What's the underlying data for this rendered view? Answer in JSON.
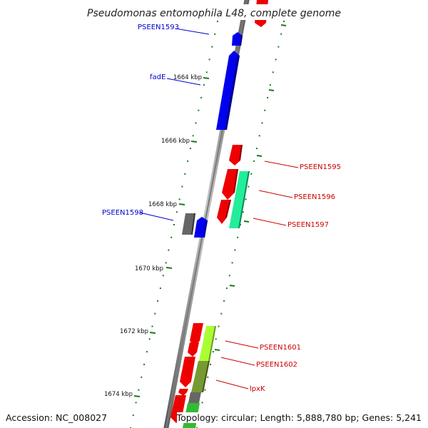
{
  "title": "Pseudomonas entomophila L48, complete genome",
  "footer": {
    "accession": "Accession: NC_008027",
    "topology": "Topology: circular; Length: 5,888,780 bp; Genes: 5,241"
  },
  "colors": {
    "backbone": "#808080",
    "tick": "#1a7a1a",
    "forward_label": "#0000cc",
    "reverse_label": "#cc0000",
    "gene_blue": "#0000ee",
    "gene_red": "#ee0000",
    "gene_gray": "#666666",
    "gene_green_mint": "#22ee99",
    "gene_lime": "#aaff33",
    "gene_olive": "#779933",
    "gene_green": "#33bb33"
  },
  "ticks": [
    {
      "label": "1664 kbp"
    },
    {
      "label": "1666 kbp"
    },
    {
      "label": "1668 kbp"
    },
    {
      "label": "1670 kbp"
    },
    {
      "label": "1672 kbp"
    },
    {
      "label": "1674 kbp"
    }
  ],
  "labels": [
    {
      "text": "PSEEN1593",
      "strand": "forward"
    },
    {
      "text": "fadE",
      "strand": "forward"
    },
    {
      "text": "PSEEN1598",
      "strand": "forward"
    },
    {
      "text": "PSEEN1595",
      "strand": "reverse"
    },
    {
      "text": "PSEEN1596",
      "strand": "reverse"
    },
    {
      "text": "PSEEN1597",
      "strand": "reverse"
    },
    {
      "text": "PSEEN1601",
      "strand": "reverse"
    },
    {
      "text": "PSEEN1602",
      "strand": "reverse"
    },
    {
      "text": "lpxK",
      "strand": "reverse"
    }
  ]
}
